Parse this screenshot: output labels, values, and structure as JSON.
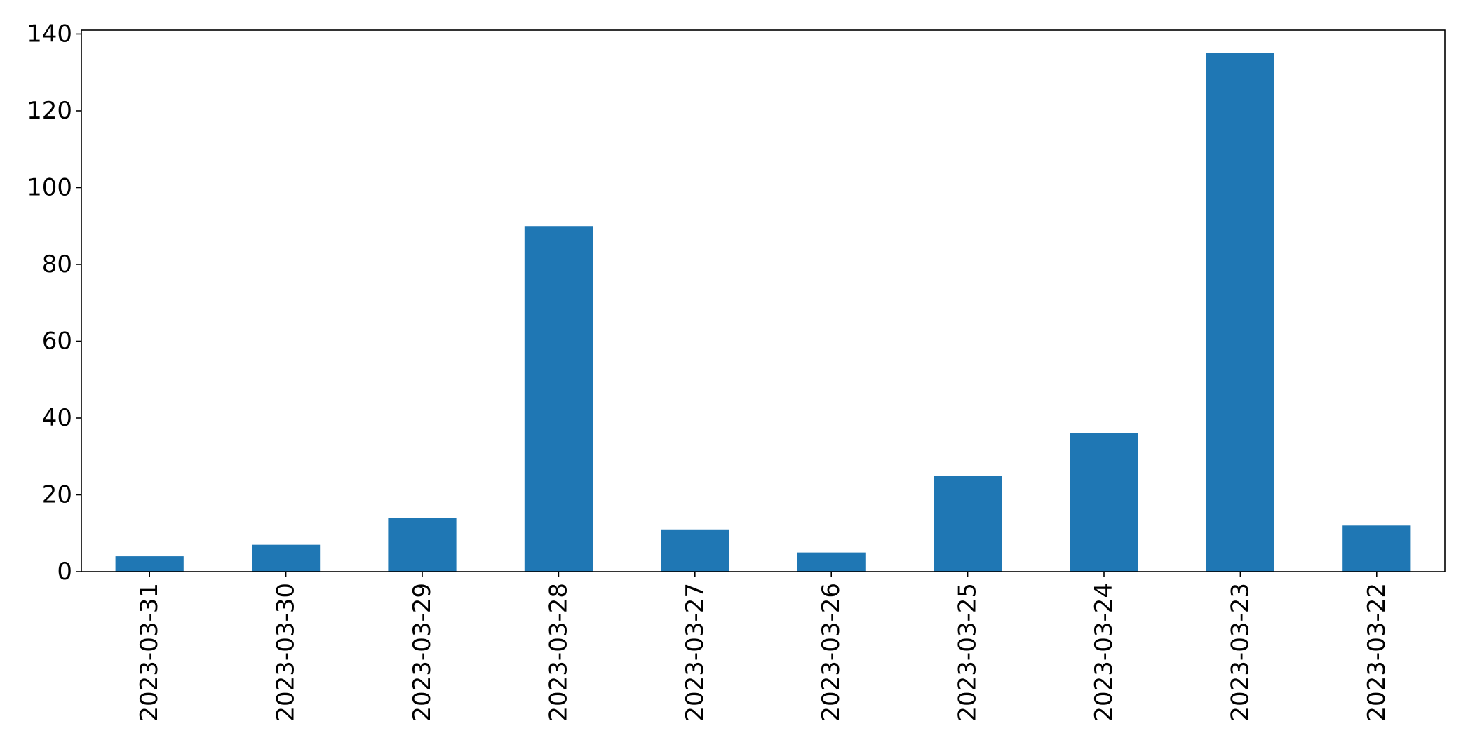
{
  "chart_data": {
    "type": "bar",
    "categories": [
      "2023-03-31",
      "2023-03-30",
      "2023-03-29",
      "2023-03-28",
      "2023-03-27",
      "2023-03-26",
      "2023-03-25",
      "2023-03-24",
      "2023-03-23",
      "2023-03-22"
    ],
    "values": [
      4,
      7,
      14,
      90,
      11,
      5,
      25,
      36,
      135,
      12
    ],
    "ylim": [
      0,
      141
    ],
    "yticks": [
      0,
      20,
      40,
      60,
      80,
      100,
      120,
      140
    ],
    "title": "",
    "xlabel": "",
    "ylabel": "",
    "grid": false,
    "bar_color": "#1f77b4"
  }
}
